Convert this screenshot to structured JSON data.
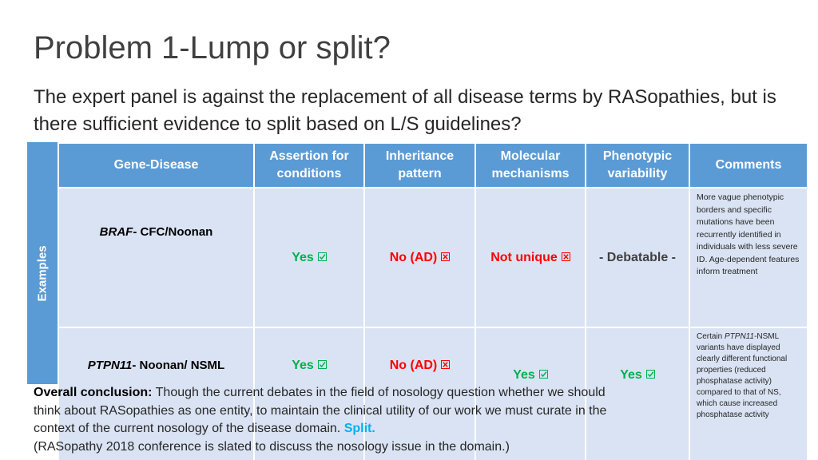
{
  "title": "Problem 1-Lump or split?",
  "subtitle": "The expert panel is against the replacement of all disease terms by RASopathies, but is there sufficient evidence to split based on L/S guidelines?",
  "side_label": "Examples",
  "colors": {
    "header_bg": "#5b9bd5",
    "cell_bg": "#dae3f3",
    "yes": "#00b050",
    "no": "#ff0000",
    "split": "#00b0f0"
  },
  "table": {
    "headers": [
      "Gene-Disease",
      "Assertion for conditions",
      "Inheritance pattern",
      "Molecular mechanisms",
      "Phenotypic variability",
      "Comments"
    ],
    "rows": [
      {
        "gene": "BRAF",
        "disease": "- CFC/Noonan",
        "assertion": "Yes",
        "inheritance": "No (AD)",
        "molecular": "Not unique",
        "phenotypic": "- Debatable -",
        "comment": "More vague phenotypic borders and specific mutations have been recurrently identified in individuals with less severe ID. Age-dependent features inform treatment"
      },
      {
        "gene": "PTPN11",
        "disease": "- Noonan/ NSML",
        "assertion": "Yes",
        "inheritance": "No (AD)",
        "molecular": "Yes",
        "phenotypic": "Yes",
        "comment_prefix": "Certain ",
        "comment_gene": "PTPN11",
        "comment": "-NSML variants have displayed clearly different functional properties (reduced phosphatase activity) compared to that of NS, which cause increased phosphatase activity"
      }
    ]
  },
  "conclusion": {
    "lead": "Overall conclusion:",
    "text": " Though the current debates in the field of nosology question whether we should think about RASopathies as one entity, to maintain the clinical utility of our work we must curate in the context of the current nosology of the disease domain. ",
    "split": "Split.",
    "tail": "(RASopathy 2018 conference is slated to discuss the nosology issue in the domain.)"
  },
  "icons": {
    "yes": "checked-box-icon",
    "no": "x-box-icon"
  }
}
